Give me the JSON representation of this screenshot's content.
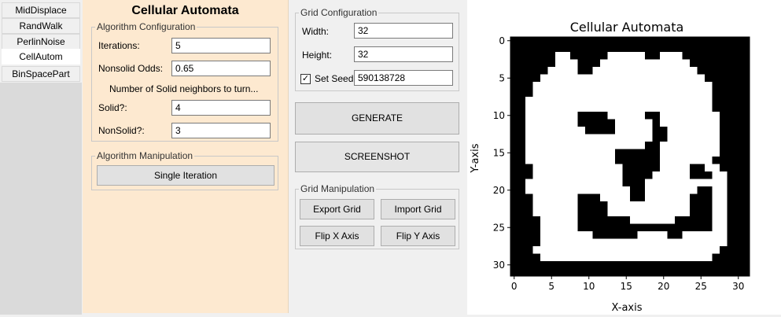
{
  "sidebar": {
    "tabs": [
      {
        "label": "MidDisplace"
      },
      {
        "label": "RandWalk"
      },
      {
        "label": "PerlinNoise"
      },
      {
        "label": "CellAutom"
      },
      {
        "label": "BinSpacePart"
      }
    ],
    "active_index": 3
  },
  "algo_panel": {
    "title": "Cellular Automata",
    "config_group": {
      "label": "Algorithm Configuration",
      "iterations_label": "Iterations:",
      "iterations_value": "5",
      "nonsolid_odds_label": "Nonsolid Odds:",
      "nonsolid_odds_value": "0.65",
      "neighbors_text": "Number of Solid neighbors to turn...",
      "solid_label": "Solid?:",
      "solid_value": "4",
      "nonsolid_label": "NonSolid?:",
      "nonsolid_value": "3"
    },
    "manip_group": {
      "label": "Algorithm Manipulation",
      "single_iteration": "Single Iteration"
    }
  },
  "grid_panel": {
    "config_group": {
      "label": "Grid Configuration",
      "width_label": "Width:",
      "width_value": "32",
      "height_label": "Height:",
      "height_value": "32",
      "set_seed_label": "Set Seed",
      "set_seed_checked": true,
      "seed_value": "590138728"
    },
    "generate": "GENERATE",
    "screenshot": "SCREENSHOT",
    "manip_group": {
      "label": "Grid Manipulation",
      "export_grid": "Export Grid",
      "import_grid": "Import Grid",
      "flip_x": "Flip X Axis",
      "flip_y": "Flip Y Axis"
    }
  },
  "chart_data": {
    "type": "heatmap",
    "title": "Cellular Automata",
    "xlabel": "X-axis",
    "ylabel": "Y-axis",
    "x_ticks": [
      "0",
      "5",
      "10",
      "15",
      "20",
      "25",
      "30"
    ],
    "y_ticks": [
      "0",
      "5",
      "10",
      "15",
      "20",
      "25",
      "30"
    ],
    "colors": {
      "solid": "#000000",
      "empty": "#ffffff"
    },
    "grid_rows": [
      "11111111111111111111111111111111",
      "11111111111111111111111111111111",
      "11111100111110000011000111111111",
      "11111100011100000000000011111111",
      "11111000011000000000000001111111",
      "11110000000000000000000000111111",
      "11100000000000000000000000011111",
      "11100000000000000000000000011111",
      "11000000000000000000000000011111",
      "11000000000000000000000000011111",
      "11000000011110000011000000001111",
      "11000000011111000001000000001111",
      "11000000001111000001100000001111",
      "11000000000000000001100000001111",
      "11000000000000000011000000001111",
      "11000000000000111111000000001111",
      "11000000000000111111000000011111",
      "11100000000000011111000011001111",
      "11100000000000011110000011100111",
      "11000000000000011100000000000111",
      "11000000000000001100000001100111",
      "11100000011100001100000011100111",
      "11100000011110000000000011100111",
      "11100000011110000000000011100111",
      "11110000011111110000001111100111",
      "11110000011111111111111111100111",
      "11110000000111111000011000000111",
      "11110000000000000000000000000111",
      "11100000000000000000000000001111",
      "11110000000000000000000000011111",
      "11111111111111111111111111111111",
      "11111111111111111111111111111111"
    ]
  }
}
